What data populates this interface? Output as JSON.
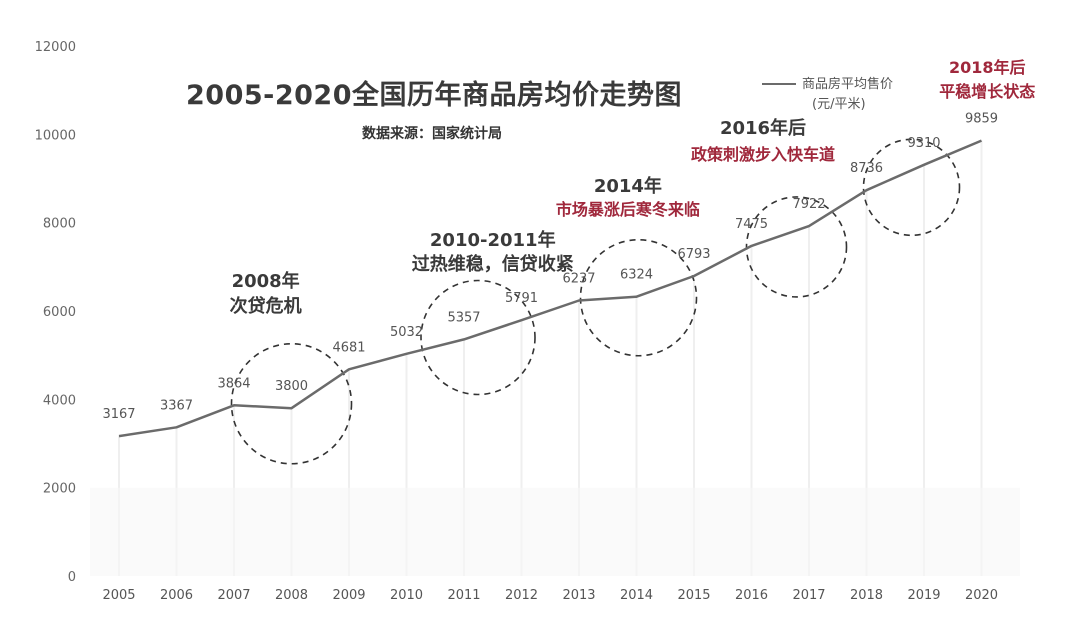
{
  "chart_data": {
    "type": "line",
    "title": "2005-2020全国历年商品房均价走势图",
    "subtitle": "数据来源：国家统计局",
    "legend": {
      "line1": "商品房平均售价",
      "line2": "(元/平米)"
    },
    "ylim": [
      0,
      12000
    ],
    "yticks": [
      "0",
      "2000",
      "4000",
      "6000",
      "8000",
      "10000",
      "12000"
    ],
    "categories": [
      "2005",
      "2006",
      "2007",
      "2008",
      "2009",
      "2010",
      "2011",
      "2012",
      "2013",
      "2014",
      "2015",
      "2016",
      "2017",
      "2018",
      "2019",
      "2020"
    ],
    "series": [
      {
        "name": "商品房平均售价",
        "color": "#6b6b6b",
        "values": [
          3167,
          3367,
          3864,
          3800,
          4681,
          5032,
          5357,
          5791,
          6237,
          6324,
          6793,
          7475,
          7922,
          8736,
          9310,
          9859
        ],
        "labels": [
          "3167",
          "3367",
          "3864",
          "3800",
          "4681",
          "5032",
          "5357",
          "5791",
          "6237",
          "6324",
          "6793",
          "7475",
          "7922",
          "8736",
          "9310",
          "9859"
        ]
      }
    ],
    "annotations": [
      {
        "line1": "2008年",
        "line2": "次贷危机",
        "style": "dark",
        "at": "2008"
      },
      {
        "line1": "2010-2011年",
        "line2": "过热维稳，信贷收紧",
        "style": "dark",
        "at": "2011"
      },
      {
        "line1": "2014年",
        "line2": "市场暴涨后寒冬来临",
        "style": "mixed",
        "at": "2014"
      },
      {
        "line1": "2016年后",
        "line2": "政策刺激步入快车道",
        "style": "mixed",
        "at": "2016"
      },
      {
        "line1": "2018年后",
        "line2": "平稳增长状态",
        "style": "red",
        "at": "2019"
      }
    ]
  }
}
